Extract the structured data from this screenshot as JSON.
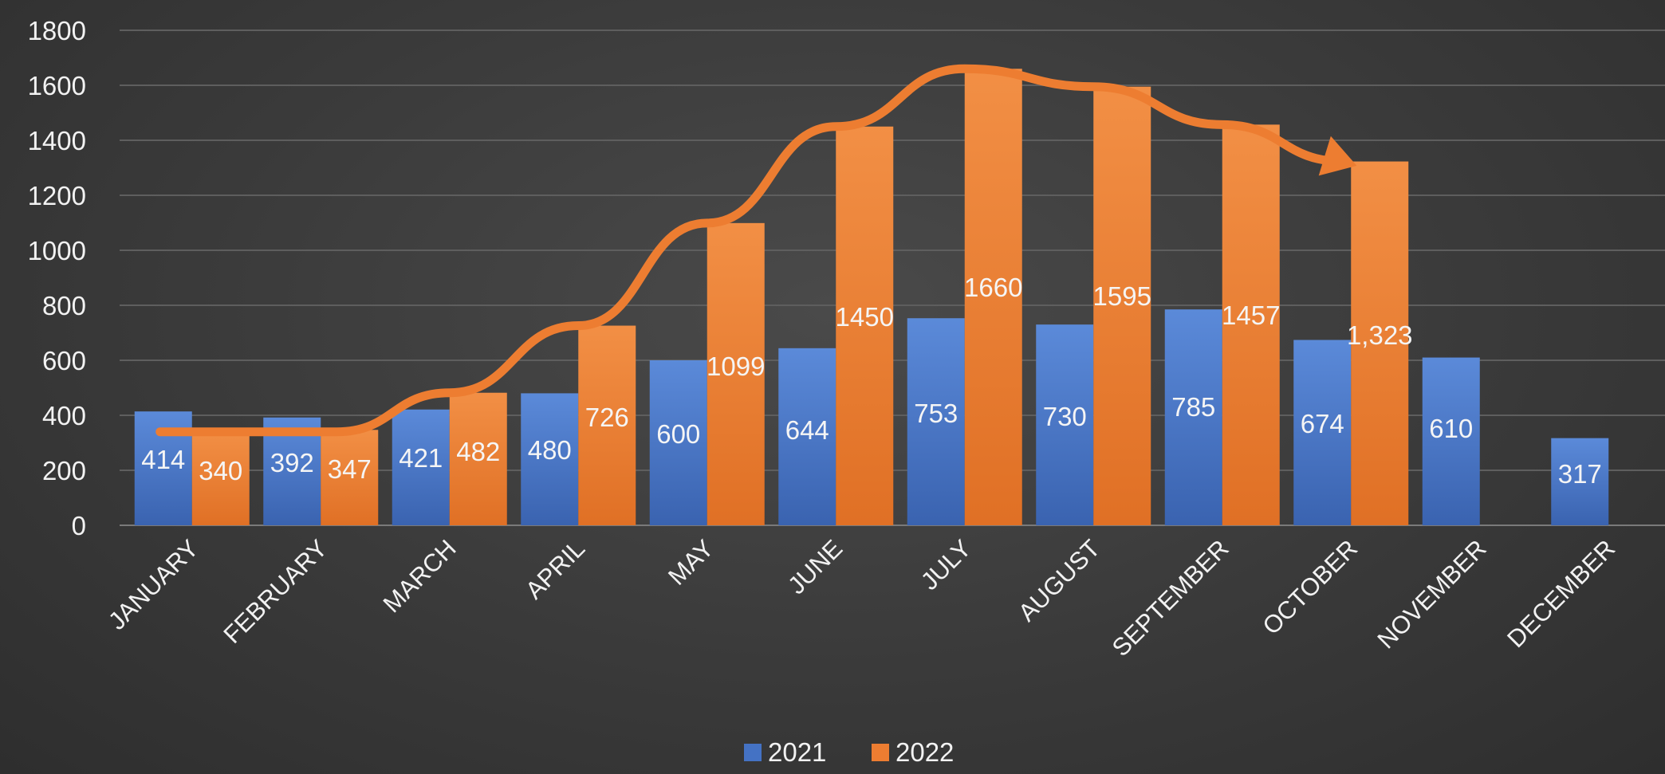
{
  "chart_data": {
    "type": "bar",
    "categories": [
      "JANUARY",
      "FEBRUARY",
      "MARCH",
      "APRIL",
      "MAY",
      "JUNE",
      "JULY",
      "AUGUST",
      "SEPTEMBER",
      "OCTOBER",
      "NOVEMBER",
      "DECEMBER"
    ],
    "series": [
      {
        "name": "2021",
        "color": "#4472c4",
        "values": [
          414,
          392,
          421,
          480,
          600,
          644,
          753,
          730,
          785,
          674,
          610,
          317
        ],
        "labels": [
          "414",
          "392",
          "421",
          "480",
          "600",
          "644",
          "753",
          "730",
          "785",
          "674",
          "610",
          "317"
        ]
      },
      {
        "name": "2022",
        "color": "#ed7d31",
        "values": [
          340,
          347,
          482,
          726,
          1099,
          1450,
          1660,
          1595,
          1457,
          1323,
          null,
          null
        ],
        "labels": [
          "340",
          "347",
          "482",
          "726",
          "1099",
          "1450",
          "1660",
          "1595",
          "1457",
          "1,323",
          "",
          ""
        ]
      }
    ],
    "trend_arrow": {
      "color": "#ed7d31",
      "from_category": "JANUARY",
      "to_category": "OCTOBER",
      "values": [
        340,
        340,
        482,
        726,
        1099,
        1450,
        1660,
        1595,
        1457,
        1323
      ]
    },
    "ylim": [
      0,
      1800
    ],
    "yticks": [
      "0",
      "200",
      "400",
      "600",
      "800",
      "1000",
      "1200",
      "1400",
      "1600",
      "1800"
    ],
    "ytick_values": [
      0,
      200,
      400,
      600,
      800,
      1000,
      1200,
      1400,
      1600,
      1800
    ],
    "grid": true,
    "legend_position": "bottom",
    "legend": [
      "2021",
      "2022"
    ],
    "xlabel": "",
    "ylabel": "",
    "title": ""
  }
}
